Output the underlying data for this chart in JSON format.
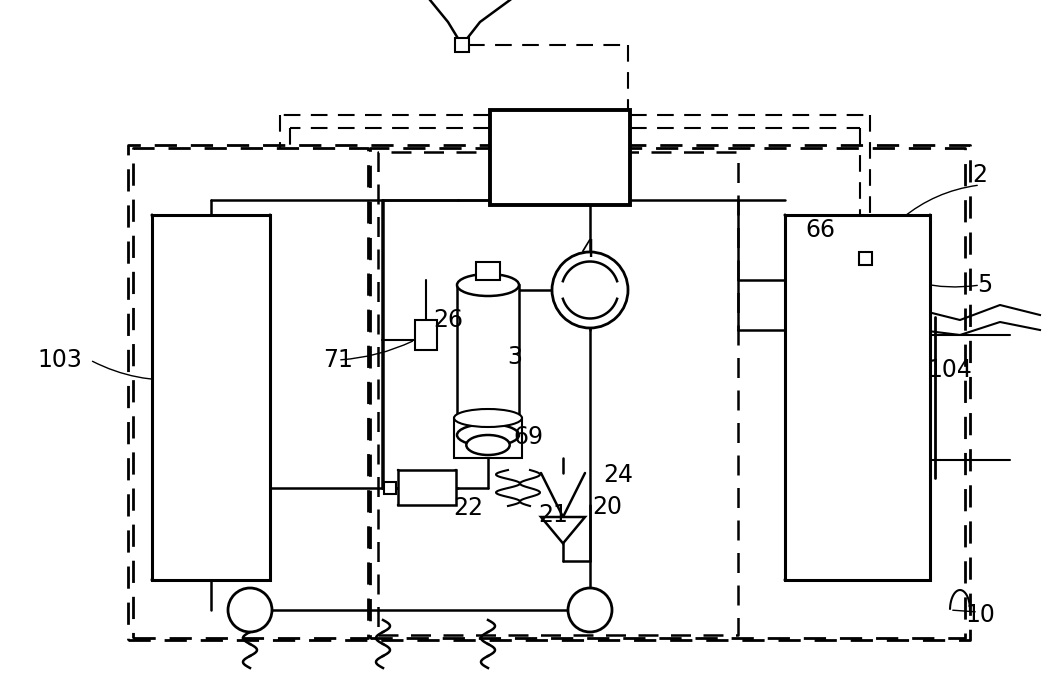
{
  "bg_color": "#ffffff",
  "lc": "#000000",
  "fig_width": 10.5,
  "fig_height": 7.0,
  "dpi": 100
}
